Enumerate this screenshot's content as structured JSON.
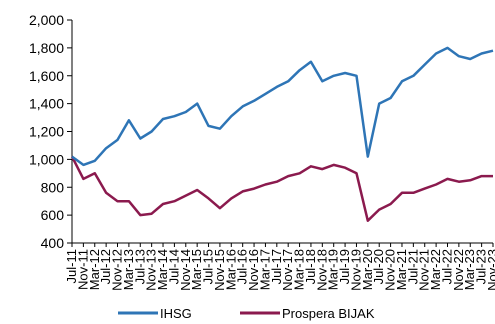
{
  "chart_data": {
    "type": "line",
    "title": "",
    "xlabel": "",
    "ylabel": "",
    "ylim": [
      400,
      2000
    ],
    "y_ticks": [
      400,
      600,
      800,
      1000,
      1200,
      1400,
      1600,
      1800,
      2000
    ],
    "y_tick_labels": [
      "400",
      "600",
      "800",
      "1,000",
      "1,200",
      "1,400",
      "1,600",
      "1,800",
      "2,000"
    ],
    "x_tick_labels": [
      "Jul-11",
      "Nov-11",
      "Mar-12",
      "Jul-12",
      "Nov-12",
      "Mar-13",
      "Jul-13",
      "Nov-13",
      "Mar-14",
      "Jul-14",
      "Nov-14",
      "Mar-15",
      "Jul-15",
      "Nov-15",
      "Mar-16",
      "Jul-16",
      "Nov-16",
      "Mar-17",
      "Jul-17",
      "Nov-17",
      "Mar-18",
      "Jul-18",
      "Nov-18",
      "Mar-19",
      "Jul-19",
      "Nov-19",
      "Mar-20",
      "Jul-20",
      "Nov-20",
      "Mar-21",
      "Jul-21",
      "Nov-21",
      "Mar-22",
      "Jul-22",
      "Nov-22",
      "Mar-23",
      "Jul-23",
      "Nov-23"
    ],
    "legend_position": "bottom",
    "grid": false,
    "series": [
      {
        "name": "IHSG",
        "color": "#2E75B6",
        "values": [
          1020,
          960,
          990,
          1080,
          1140,
          1280,
          1150,
          1200,
          1290,
          1310,
          1340,
          1400,
          1240,
          1220,
          1310,
          1380,
          1420,
          1470,
          1520,
          1560,
          1640,
          1700,
          1560,
          1600,
          1620,
          1600,
          1020,
          1400,
          1440,
          1560,
          1600,
          1680,
          1760,
          1800,
          1740,
          1720,
          1760,
          1780
        ]
      },
      {
        "name": "Prospera BIJAK",
        "color": "#8B1A4E",
        "values": [
          1020,
          860,
          900,
          760,
          700,
          700,
          600,
          610,
          680,
          700,
          740,
          780,
          720,
          650,
          720,
          770,
          790,
          820,
          840,
          880,
          900,
          950,
          930,
          960,
          940,
          900,
          560,
          640,
          680,
          760,
          760,
          790,
          820,
          860,
          840,
          850,
          880,
          880
        ]
      }
    ]
  }
}
